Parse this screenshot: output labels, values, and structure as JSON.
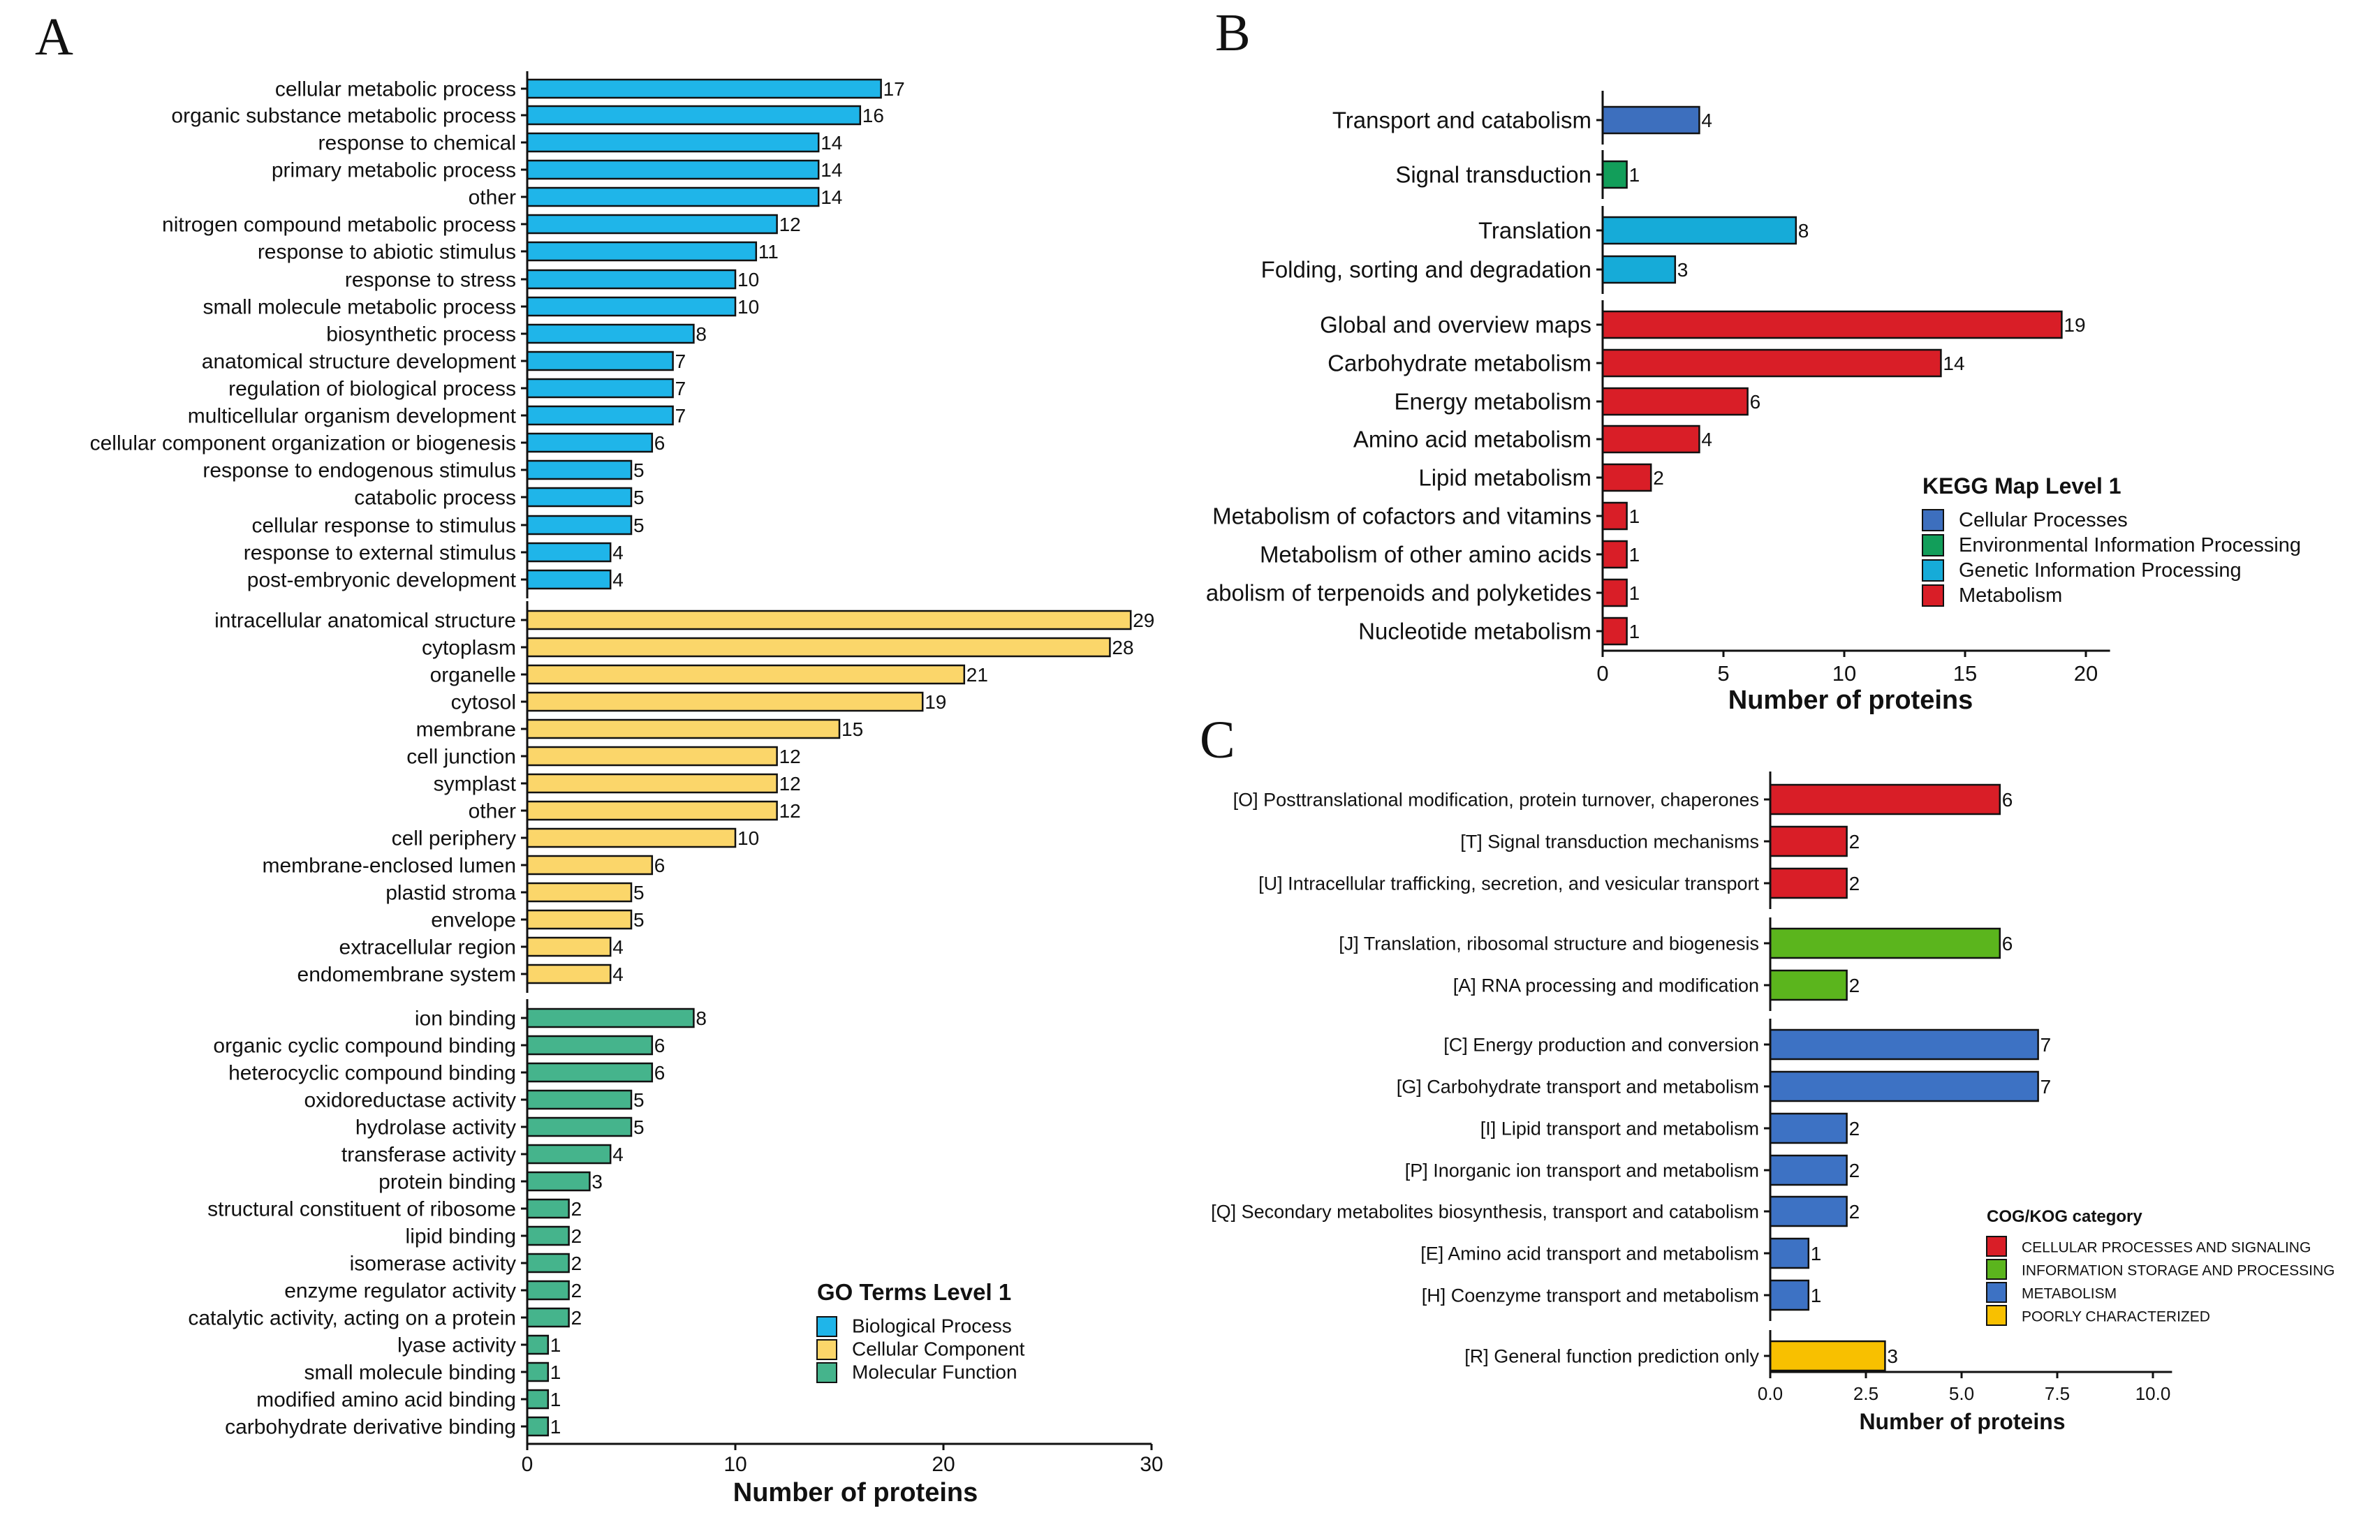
{
  "colors": {
    "bp": "#1fb5e9",
    "cc": "#fbd66a",
    "mf": "#45b48c",
    "kegg_cellular": "#3d6fbe",
    "kegg_environmental": "#129e5a",
    "kegg_genetic": "#16abd8",
    "kegg_metabolism": "#d91e27",
    "cog_cellular": "#d91e27",
    "cog_information": "#5bb51d",
    "cog_metabolism": "#3d72c4",
    "cog_poorly": "#f8c000"
  },
  "panel_labels": {
    "a": "A",
    "b": "B",
    "c": "C"
  },
  "chart_data": [
    {
      "id": "A",
      "type": "bar",
      "orientation": "horizontal",
      "xlabel": "Number of proteins",
      "xlim": [
        0,
        30
      ],
      "xticks": [
        "0",
        "10",
        "20",
        "30"
      ],
      "legend": {
        "title": "GO Terms Level 1",
        "placement": "bottom-right",
        "entries": [
          {
            "label": "Biological Process",
            "color": "#1fb5e9"
          },
          {
            "label": "Cellular Component",
            "color": "#fbd66a"
          },
          {
            "label": "Molecular Function",
            "color": "#45b48c"
          }
        ]
      },
      "groups": [
        {
          "name": "Biological Process",
          "color": "#1fb5e9",
          "categories": [
            "cellular metabolic process",
            "organic substance metabolic process",
            "response to chemical",
            "primary metabolic process",
            "other",
            "nitrogen compound metabolic process",
            "response to abiotic stimulus",
            "response to stress",
            "small molecule metabolic process",
            "biosynthetic process",
            "anatomical structure development",
            "regulation of biological process",
            "multicellular organism development",
            "cellular component organization or biogenesis",
            "response to endogenous stimulus",
            "catabolic process",
            "cellular response to stimulus",
            "response to external stimulus",
            "post-embryonic development"
          ],
          "values": [
            17,
            16,
            14,
            14,
            14,
            12,
            11,
            10,
            10,
            8,
            7,
            7,
            7,
            6,
            5,
            5,
            5,
            4,
            4
          ]
        },
        {
          "name": "Cellular Component",
          "color": "#fbd66a",
          "categories": [
            "intracellular anatomical structure",
            "cytoplasm",
            "organelle",
            "cytosol",
            "membrane",
            "cell junction",
            "symplast",
            "other",
            "cell periphery",
            "membrane-enclosed lumen",
            "plastid stroma",
            "envelope",
            "extracellular region",
            "endomembrane system"
          ],
          "values": [
            29,
            28,
            21,
            19,
            15,
            12,
            12,
            12,
            10,
            6,
            5,
            5,
            4,
            4
          ]
        },
        {
          "name": "Molecular Function",
          "color": "#45b48c",
          "categories": [
            "ion binding",
            "organic cyclic compound binding",
            "heterocyclic compound binding",
            "oxidoreductase activity",
            "hydrolase activity",
            "transferase activity",
            "protein binding",
            "structural constituent of ribosome",
            "lipid binding",
            "isomerase activity",
            "enzyme regulator activity",
            "catalytic activity, acting on a protein",
            "lyase activity",
            "small molecule binding",
            "modified amino acid binding",
            "carbohydrate derivative binding"
          ],
          "values": [
            8,
            6,
            6,
            5,
            5,
            4,
            3,
            2,
            2,
            2,
            2,
            2,
            1,
            1,
            1,
            1
          ]
        }
      ]
    },
    {
      "id": "B",
      "type": "bar",
      "orientation": "horizontal",
      "xlabel": "Number of proteins",
      "xlim": [
        0,
        21
      ],
      "xticks": [
        "0",
        "5",
        "10",
        "15",
        "20"
      ],
      "legend": {
        "title": "KEGG Map Level 1",
        "placement": "right",
        "entries": [
          {
            "label": "Cellular Processes",
            "color": "#3d6fbe"
          },
          {
            "label": "Environmental Information Processing",
            "color": "#129e5a"
          },
          {
            "label": "Genetic Information Processing",
            "color": "#16abd8"
          },
          {
            "label": "Metabolism",
            "color": "#d91e27"
          }
        ]
      },
      "groups": [
        {
          "name": "Cellular Processes",
          "color": "#3d6fbe",
          "categories": [
            "Transport and catabolism"
          ],
          "values": [
            4
          ]
        },
        {
          "name": "Environmental Information Processing",
          "color": "#129e5a",
          "categories": [
            "Signal transduction"
          ],
          "values": [
            1
          ]
        },
        {
          "name": "Genetic Information Processing",
          "color": "#16abd8",
          "categories": [
            "Translation",
            "Folding, sorting and degradation"
          ],
          "values": [
            8,
            3
          ]
        },
        {
          "name": "Metabolism",
          "color": "#d91e27",
          "categories": [
            "Global and overview maps",
            "Carbohydrate metabolism",
            "Energy metabolism",
            "Amino acid metabolism",
            "Lipid metabolism",
            "Metabolism of cofactors and vitamins",
            "Metabolism of other amino acids",
            "abolism of terpenoids and polyketides",
            "Nucleotide metabolism"
          ],
          "values": [
            19,
            14,
            6,
            4,
            2,
            1,
            1,
            1,
            1
          ]
        }
      ]
    },
    {
      "id": "C",
      "type": "bar",
      "orientation": "horizontal",
      "xlabel": "Number of proteins",
      "xlim": [
        0,
        10.5
      ],
      "xticks": [
        "0.0",
        "2.5",
        "5.0",
        "7.5",
        "10.0"
      ],
      "legend": {
        "title": "COG/KOG category",
        "placement": "right",
        "entries": [
          {
            "label": "CELLULAR PROCESSES AND SIGNALING",
            "color": "#d91e27"
          },
          {
            "label": "INFORMATION STORAGE AND PROCESSING",
            "color": "#5bb51d"
          },
          {
            "label": "METABOLISM",
            "color": "#3d72c4"
          },
          {
            "label": "POORLY CHARACTERIZED",
            "color": "#f8c000"
          }
        ]
      },
      "groups": [
        {
          "name": "CELLULAR PROCESSES AND SIGNALING",
          "color": "#d91e27",
          "categories": [
            "[O] Posttranslational modification, protein turnover, chaperones",
            "[T] Signal transduction mechanisms",
            "[U] Intracellular trafficking, secretion, and vesicular transport"
          ],
          "values": [
            6,
            2,
            2
          ]
        },
        {
          "name": "INFORMATION STORAGE AND PROCESSING",
          "color": "#5bb51d",
          "categories": [
            "[J] Translation, ribosomal structure and biogenesis",
            "[A] RNA processing and modification"
          ],
          "values": [
            6,
            2
          ]
        },
        {
          "name": "METABOLISM",
          "color": "#3d72c4",
          "categories": [
            "[C] Energy production and conversion",
            "[G] Carbohydrate transport and metabolism",
            "[I] Lipid transport and metabolism",
            "[P] Inorganic ion transport and metabolism",
            "[Q] Secondary metabolites biosynthesis, transport and catabolism",
            "[E] Amino acid transport and metabolism",
            "[H] Coenzyme transport and metabolism"
          ],
          "values": [
            7,
            7,
            2,
            2,
            2,
            1,
            1
          ]
        },
        {
          "name": "POORLY CHARACTERIZED",
          "color": "#f8c000",
          "categories": [
            "[R] General function prediction only"
          ],
          "values": [
            3
          ]
        }
      ]
    }
  ]
}
